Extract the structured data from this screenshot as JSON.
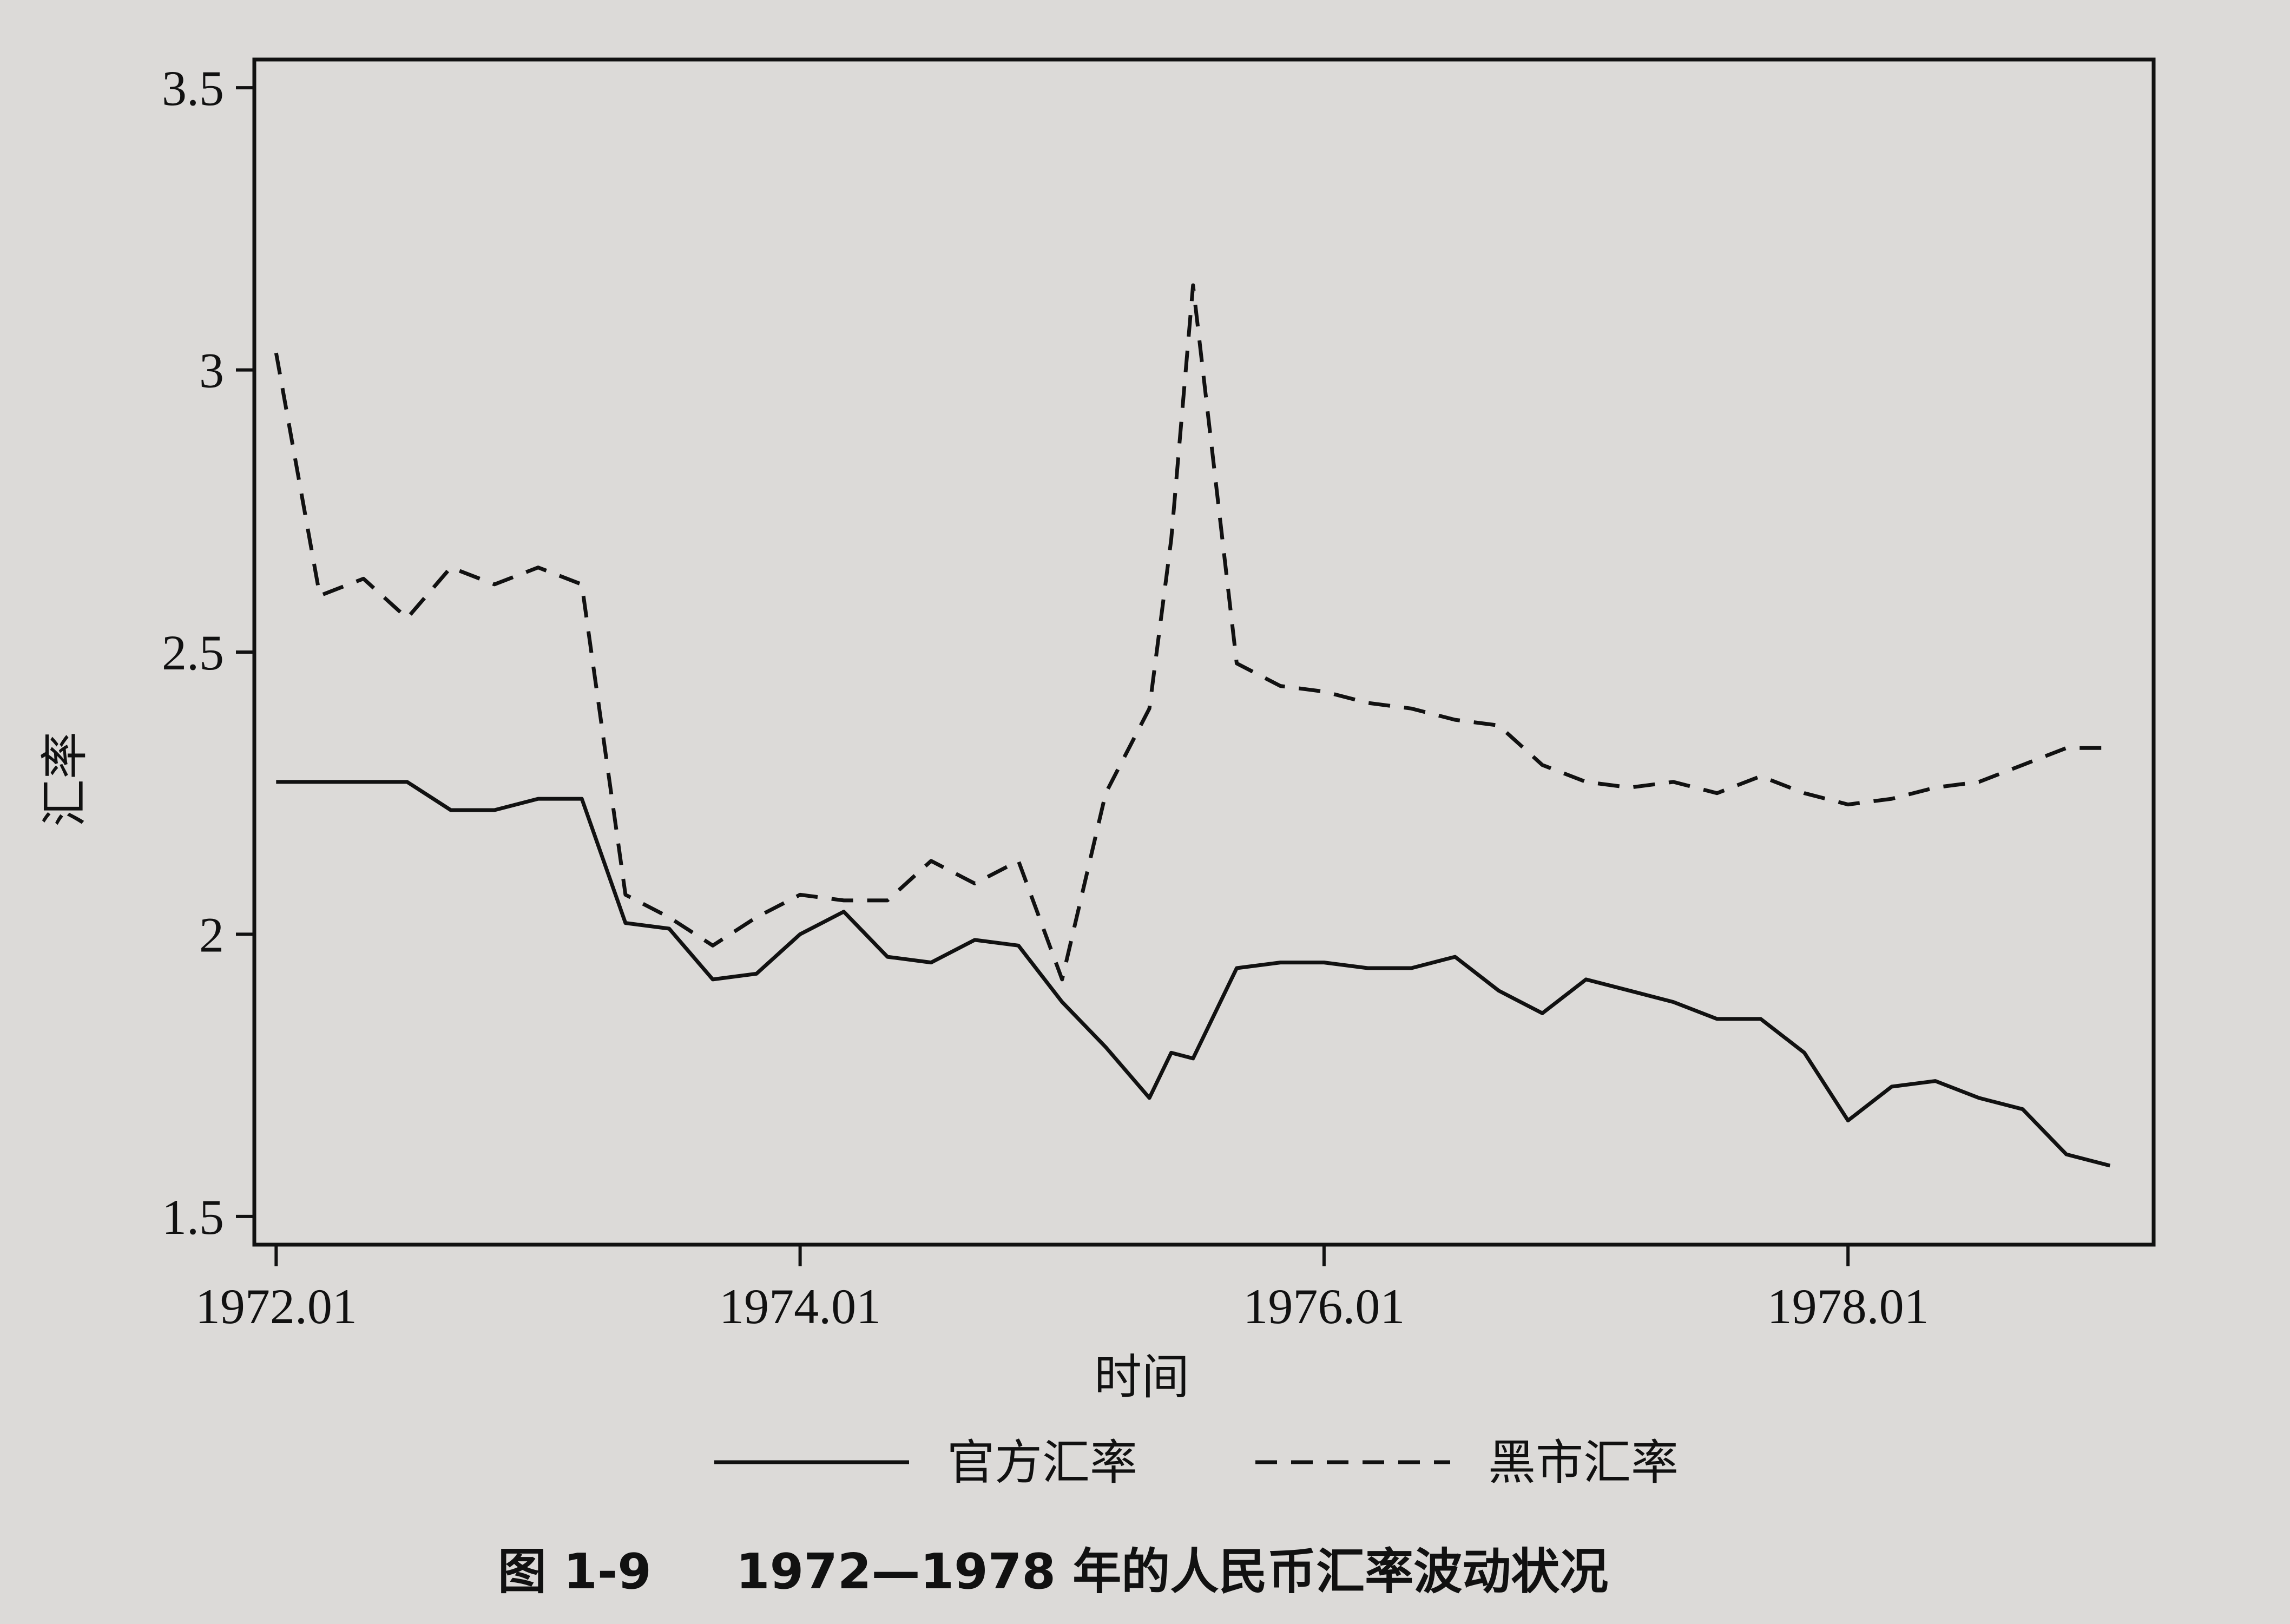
{
  "caption": {
    "figure_no": "图 1-9",
    "title": "1972—1978 年的人民币汇率波动状况"
  },
  "chart_data": {
    "type": "line",
    "title": "",
    "xlabel": "时间",
    "ylabel": "汇率",
    "x_tick_labels": [
      "1972.01",
      "1974.01",
      "1976.01",
      "1978.01"
    ],
    "y_tick_labels": [
      "1.5",
      "2",
      "2.5",
      "3",
      "3.5"
    ],
    "y_ticks": [
      1.5,
      2,
      2.5,
      3,
      3.5
    ],
    "xlim": [
      "1971-12",
      "1979-03"
    ],
    "ylim": [
      1.45,
      3.55
    ],
    "grid": false,
    "legend_position": "bottom",
    "x": [
      "1972-01",
      "1972-03",
      "1972-05",
      "1972-07",
      "1972-09",
      "1972-11",
      "1973-01",
      "1973-03",
      "1973-05",
      "1973-07",
      "1973-09",
      "1973-11",
      "1974-01",
      "1974-03",
      "1974-05",
      "1974-07",
      "1974-09",
      "1974-11",
      "1975-01",
      "1975-03",
      "1975-05",
      "1975-06",
      "1975-07",
      "1975-09",
      "1975-11",
      "1976-01",
      "1976-03",
      "1976-05",
      "1976-07",
      "1976-09",
      "1976-11",
      "1977-01",
      "1977-03",
      "1977-05",
      "1977-07",
      "1977-09",
      "1977-11",
      "1978-01",
      "1978-03",
      "1978-05",
      "1978-07",
      "1978-09",
      "1978-11",
      "1979-01"
    ],
    "series": [
      {
        "name": "官方汇率",
        "color": "#111111",
        "style": "solid",
        "values": [
          2.27,
          2.27,
          2.27,
          2.27,
          2.22,
          2.22,
          2.24,
          2.24,
          2.02,
          2.01,
          1.92,
          1.93,
          2.0,
          2.04,
          1.96,
          1.95,
          1.99,
          1.98,
          1.88,
          1.8,
          1.71,
          1.79,
          1.78,
          1.94,
          1.95,
          1.95,
          1.94,
          1.94,
          1.96,
          1.9,
          1.86,
          1.92,
          1.9,
          1.88,
          1.85,
          1.85,
          1.79,
          1.67,
          1.73,
          1.74,
          1.71,
          1.69,
          1.61,
          1.59
        ]
      },
      {
        "name": "黑市汇率",
        "color": "#111111",
        "style": "dashed",
        "values": [
          3.03,
          2.6,
          2.63,
          2.56,
          2.65,
          2.62,
          2.65,
          2.62,
          2.07,
          2.03,
          1.98,
          2.03,
          2.07,
          2.06,
          2.06,
          2.13,
          2.09,
          2.13,
          1.92,
          2.25,
          2.4,
          2.7,
          3.15,
          2.48,
          2.44,
          2.43,
          2.41,
          2.4,
          2.38,
          2.37,
          2.3,
          2.27,
          2.26,
          2.27,
          2.25,
          2.28,
          2.25,
          2.23,
          2.24,
          2.26,
          2.27,
          2.3,
          2.33,
          2.33
        ]
      }
    ]
  }
}
